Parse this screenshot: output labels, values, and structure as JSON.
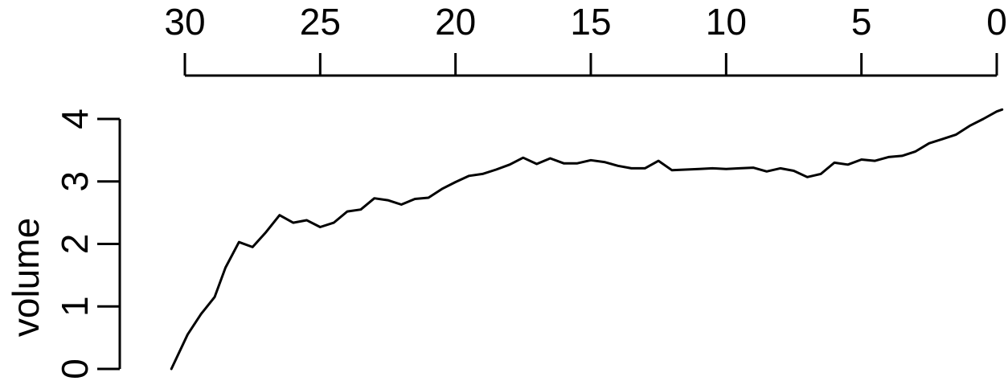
{
  "chart_data": {
    "type": "line",
    "title": "",
    "xlabel": "",
    "ylabel": "volume",
    "x_axis_position": "top",
    "x_reversed": true,
    "xlim": [
      30,
      0
    ],
    "ylim": [
      0,
      4
    ],
    "grid": false,
    "legend": "none",
    "x_ticks": [
      30,
      25,
      20,
      15,
      10,
      5,
      0
    ],
    "y_ticks": [
      0,
      1,
      2,
      3,
      4
    ],
    "line_color": "#000000",
    "series": [
      {
        "x": [
          30.5,
          29.9,
          29.4,
          28.9,
          28.5,
          28.0,
          27.5,
          27.0,
          26.5,
          26.0,
          25.5,
          25.0,
          24.5,
          24.0,
          23.5,
          23.0,
          22.5,
          22.0,
          21.5,
          21.0,
          20.5,
          20.0,
          19.5,
          19.0,
          18.5,
          18.0,
          17.5,
          17.0,
          16.5,
          16.0,
          15.5,
          15.0,
          14.5,
          14.0,
          13.5,
          13.0,
          12.5,
          12.0,
          11.5,
          11.0,
          10.5,
          10.0,
          9.5,
          9.0,
          8.5,
          8.0,
          7.5,
          7.0,
          6.5,
          6.0,
          5.5,
          5.0,
          4.5,
          4.0,
          3.5,
          3.0,
          2.5,
          2.0,
          1.5,
          1.0,
          0.5,
          0.0,
          -0.2
        ],
        "y": [
          0.0,
          0.55,
          0.88,
          1.15,
          1.62,
          2.03,
          1.95,
          2.19,
          2.46,
          2.34,
          2.38,
          2.27,
          2.34,
          2.52,
          2.55,
          2.73,
          2.7,
          2.63,
          2.72,
          2.74,
          2.88,
          2.99,
          3.09,
          3.12,
          3.19,
          3.27,
          3.38,
          3.28,
          3.37,
          3.29,
          3.29,
          3.34,
          3.31,
          3.25,
          3.21,
          3.21,
          3.33,
          3.18,
          3.19,
          3.2,
          3.21,
          3.2,
          3.21,
          3.22,
          3.16,
          3.21,
          3.17,
          3.07,
          3.12,
          3.3,
          3.27,
          3.35,
          3.33,
          3.39,
          3.41,
          3.48,
          3.61,
          3.68,
          3.75,
          3.89,
          4.0,
          4.12,
          4.15
        ]
      }
    ]
  }
}
